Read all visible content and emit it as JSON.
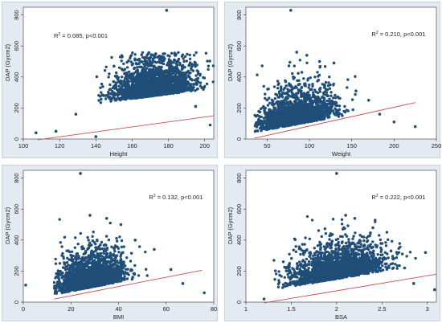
{
  "colors": {
    "point": "#1f4e79",
    "fit_line": "#c0504d",
    "panel_bg": "#e4eaf1",
    "plot_bg": "#ffffff"
  },
  "chart_data": [
    {
      "type": "scatter",
      "xlabel": "Height",
      "ylabel": "DAP (Gycm2)",
      "xlim": [
        100,
        205
      ],
      "ylim": [
        0,
        850
      ],
      "xticks": [
        100,
        120,
        140,
        160,
        180,
        200
      ],
      "yticks": [
        0,
        200,
        400,
        600,
        800
      ],
      "annotation": {
        "r2_prefix": "R",
        "r2_sup": "2",
        "r2_text": " = 0.085, p<0.001"
      },
      "fit_line": {
        "x": [
          108,
          205
        ],
        "y": [
          -5,
          150
        ]
      },
      "cloud": {
        "x_mean": 172,
        "x_sd": 11,
        "x_min": 138,
        "x_max": 205,
        "y_base": 20,
        "y_slope": 1.5,
        "y_spread": 90
      },
      "points": [
        {
          "x": 107,
          "y": 40
        },
        {
          "x": 118,
          "y": 50
        },
        {
          "x": 129,
          "y": 160
        },
        {
          "x": 140,
          "y": 15
        },
        {
          "x": 150,
          "y": 470
        },
        {
          "x": 163,
          "y": 510
        },
        {
          "x": 173,
          "y": 550
        },
        {
          "x": 179,
          "y": 830
        },
        {
          "x": 184,
          "y": 540
        },
        {
          "x": 193,
          "y": 470
        },
        {
          "x": 195,
          "y": 210
        },
        {
          "x": 203,
          "y": 90
        }
      ]
    },
    {
      "type": "scatter",
      "xlabel": "Weight",
      "ylabel": "DAP (Gycm2)",
      "xlim": [
        25,
        250
      ],
      "ylim": [
        0,
        850
      ],
      "xticks": [
        50,
        100,
        150,
        200,
        250
      ],
      "yticks": [
        0,
        200,
        400,
        600,
        800
      ],
      "annotation": {
        "r2_prefix": "R",
        "r2_sup": "2",
        "r2_text": " = 0.210, p<0.001"
      },
      "fit_line": {
        "x": [
          35,
          225
        ],
        "y": [
          5,
          235
        ]
      },
      "cloud": {
        "x_mean": 85,
        "x_sd": 22,
        "x_min": 35,
        "x_max": 175,
        "y_base": 10,
        "y_slope": 1.0,
        "y_spread": 85
      },
      "points": [
        {
          "x": 78,
          "y": 830
        },
        {
          "x": 85,
          "y": 560
        },
        {
          "x": 97,
          "y": 540
        },
        {
          "x": 112,
          "y": 500
        },
        {
          "x": 129,
          "y": 490
        },
        {
          "x": 155,
          "y": 310
        },
        {
          "x": 183,
          "y": 160
        },
        {
          "x": 200,
          "y": 110
        },
        {
          "x": 225,
          "y": 80
        },
        {
          "x": 170,
          "y": 250
        }
      ]
    },
    {
      "type": "scatter",
      "xlabel": "BMI",
      "ylabel": "DAP (Gycm2)",
      "xlim": [
        0,
        80
      ],
      "ylim": [
        0,
        850
      ],
      "xticks": [
        0,
        20,
        40,
        60,
        80
      ],
      "yticks": [
        0,
        200,
        400,
        600,
        800
      ],
      "annotation": {
        "r2_prefix": "R",
        "r2_sup": "2",
        "r2_text": " = 0.132, p<0.001"
      },
      "fit_line": {
        "x": [
          13,
          75
        ],
        "y": [
          20,
          205
        ]
      },
      "cloud": {
        "x_mean": 28,
        "x_sd": 7,
        "x_min": 13,
        "x_max": 60,
        "y_base": 10,
        "y_slope": 3.0,
        "y_spread": 85
      },
      "points": [
        {
          "x": 1,
          "y": 110
        },
        {
          "x": 24,
          "y": 830
        },
        {
          "x": 28,
          "y": 560
        },
        {
          "x": 35,
          "y": 540
        },
        {
          "x": 41,
          "y": 500
        },
        {
          "x": 55,
          "y": 340
        },
        {
          "x": 62,
          "y": 210
        },
        {
          "x": 67,
          "y": 120
        },
        {
          "x": 76,
          "y": 60
        },
        {
          "x": 47,
          "y": 400
        }
      ]
    },
    {
      "type": "scatter",
      "xlabel": "BSA",
      "ylabel": "DAP (Gycm2)",
      "xlim": [
        1,
        3.1
      ],
      "ylim": [
        0,
        850
      ],
      "xticks": [
        1,
        1.5,
        2,
        2.5,
        3
      ],
      "yticks": [
        0,
        200,
        400,
        600,
        800
      ],
      "annotation": {
        "r2_prefix": "R",
        "r2_sup": "2",
        "r2_text": " = 0.222, p<0.001"
      },
      "fit_line": {
        "x": [
          1.2,
          3.1
        ],
        "y": [
          -5,
          180
        ]
      },
      "cloud": {
        "x_mean": 2.0,
        "x_sd": 0.25,
        "x_min": 1.3,
        "x_max": 2.9,
        "y_base": -50,
        "y_slope": 100,
        "y_spread": 85
      },
      "points": [
        {
          "x": 1.2,
          "y": 20
        },
        {
          "x": 2.0,
          "y": 830
        },
        {
          "x": 2.1,
          "y": 560
        },
        {
          "x": 2.2,
          "y": 540
        },
        {
          "x": 2.4,
          "y": 480
        },
        {
          "x": 2.6,
          "y": 330
        },
        {
          "x": 2.75,
          "y": 220
        },
        {
          "x": 2.98,
          "y": 320
        },
        {
          "x": 3.08,
          "y": 80
        },
        {
          "x": 2.85,
          "y": 120
        }
      ]
    }
  ]
}
